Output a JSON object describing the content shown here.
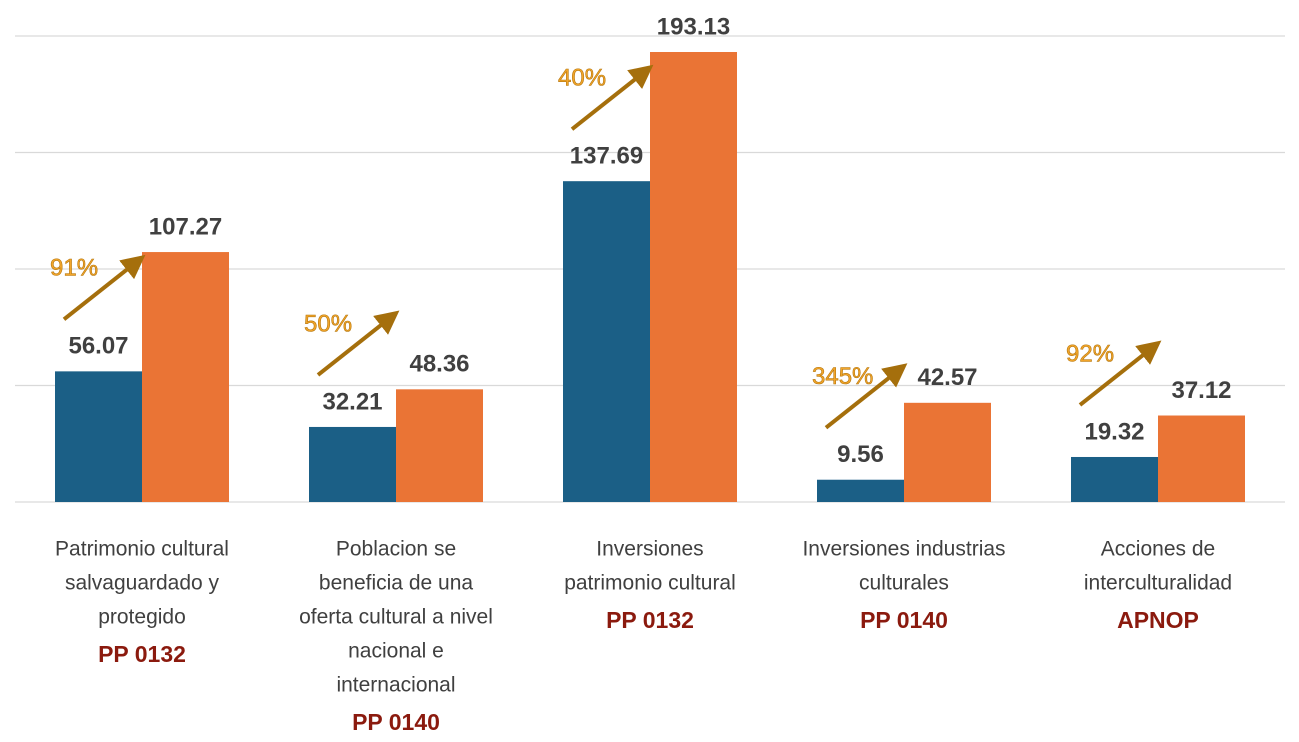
{
  "chart_data": {
    "type": "bar",
    "categories": [
      [
        "Patrimonio cultural",
        "salvaguardado y",
        "protegido"
      ],
      [
        "Poblacion se",
        "beneficia de una",
        "oferta cultural a nivel",
        "nacional e",
        "internacional"
      ],
      [
        "Inversiones",
        "patrimonio cultural"
      ],
      [
        "Inversiones industrias",
        "culturales"
      ],
      [
        "Acciones de",
        "interculturalidad"
      ]
    ],
    "programs": [
      "PP 0132",
      "PP 0140",
      "PP 0132",
      "PP 0140",
      "APNOP"
    ],
    "series": [
      {
        "color": "#1b5f86",
        "values": [
          56.07,
          32.21,
          137.69,
          9.56,
          19.32
        ]
      },
      {
        "color": "#ea7435",
        "values": [
          107.27,
          48.36,
          193.13,
          42.57,
          37.12
        ]
      }
    ],
    "annotations": [
      "91%",
      "50%",
      "40%",
      "345%",
      "92%"
    ],
    "ylim": [
      0,
      200
    ],
    "yticks": [
      0,
      50,
      100,
      150,
      200
    ],
    "grid": true
  }
}
